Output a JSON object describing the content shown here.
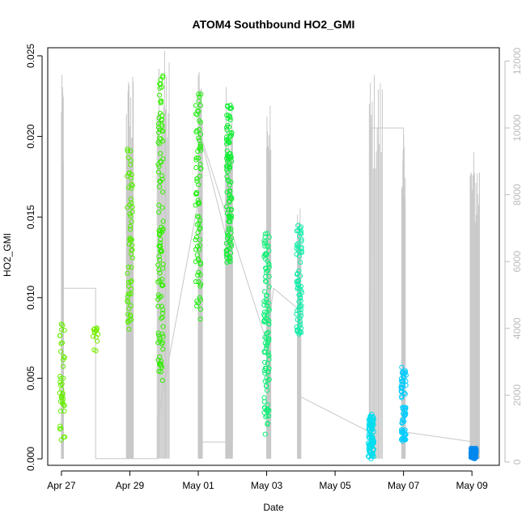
{
  "chart_data": {
    "type": "scatter",
    "title": "ATOM4 Southbound HO2_GMI",
    "xlabel": "Date",
    "ylabel": "HO2_GMI",
    "x_ticks": [
      "Apr 27",
      "Apr 29",
      "May 01",
      "May 03",
      "May 05",
      "May 07",
      "May 09"
    ],
    "y_ticks": [
      "0.000",
      "0.005",
      "0.010",
      "0.015",
      "0.020",
      "0.025"
    ],
    "y_right_ticks": [
      "0",
      "2000",
      "4000",
      "6000",
      "8000",
      "10000",
      "12000"
    ],
    "x_range_days": [
      -0.4,
      12.8
    ],
    "x_tick_days": [
      0,
      2,
      4,
      6,
      8,
      10,
      12
    ],
    "ylim": [
      -0.0004,
      0.0255
    ],
    "y2lim": [
      -100,
      12400
    ],
    "y_tick_values": [
      0,
      0.005,
      0.01,
      0.015,
      0.02,
      0.025
    ],
    "y2_tick_values": [
      0,
      2000,
      4000,
      6000,
      8000,
      10000,
      12000
    ],
    "marker": "open circle",
    "color_gradient": "green to blue by time",
    "grid": false,
    "point_clusters": [
      {
        "day": 0.02,
        "ymin": 0.0008,
        "ymax": 0.0088,
        "n": 40,
        "color": "#66ee00"
      },
      {
        "day": 1.0,
        "ymin": 0.0065,
        "ymax": 0.0082,
        "n": 14,
        "color": "#77ee00"
      },
      {
        "day": 2.0,
        "ymin": 0.0075,
        "ymax": 0.0198,
        "n": 60,
        "color": "#55ee00"
      },
      {
        "day": 2.9,
        "ymin": 0.0045,
        "ymax": 0.0245,
        "n": 110,
        "color": "#33ee00"
      },
      {
        "day": 4.0,
        "ymin": 0.0085,
        "ymax": 0.0237,
        "n": 80,
        "color": "#22ee11"
      },
      {
        "day": 4.9,
        "ymin": 0.0118,
        "ymax": 0.0226,
        "n": 110,
        "color": "#11ee33"
      },
      {
        "day": 6.0,
        "ymin": 0.0015,
        "ymax": 0.015,
        "n": 110,
        "color": "#11ee77"
      },
      {
        "day": 6.95,
        "ymin": 0.0075,
        "ymax": 0.0148,
        "n": 70,
        "color": "#11eeaa"
      },
      {
        "day": 9.05,
        "ymin": 0.0,
        "ymax": 0.003,
        "n": 100,
        "color": "#00ddee"
      },
      {
        "day": 10.0,
        "ymin": 0.001,
        "ymax": 0.0057,
        "n": 70,
        "color": "#00ccff"
      },
      {
        "day": 12.05,
        "ymin": 0.0,
        "ymax": 0.0007,
        "n": 90,
        "color": "#0088ee"
      }
    ],
    "altitude_flights": [
      {
        "start": 0.0,
        "end": 0.06,
        "peak": 11600
      },
      {
        "start": 1.9,
        "end": 2.1,
        "peak": 11800
      },
      {
        "start": 2.8,
        "end": 3.15,
        "peak": 12400
      },
      {
        "start": 4.0,
        "end": 4.12,
        "peak": 12200
      },
      {
        "start": 4.8,
        "end": 5.0,
        "peak": 11400
      },
      {
        "start": 6.0,
        "end": 6.12,
        "peak": 10800
      },
      {
        "start": 6.9,
        "end": 7.0,
        "peak": 7600
      },
      {
        "start": 9.0,
        "end": 9.38,
        "peak": 11800
      },
      {
        "start": 9.95,
        "end": 10.05,
        "peak": 9800
      },
      {
        "start": 11.95,
        "end": 12.22,
        "peak": 9500
      }
    ],
    "altitude_track_line": [
      [
        0.0,
        100
      ],
      [
        0.0,
        5200
      ],
      [
        1.0,
        5200
      ],
      [
        1.0,
        100
      ],
      [
        2.0,
        100
      ],
      [
        2.8,
        100
      ],
      [
        2.8,
        1200
      ],
      [
        4.0,
        7800
      ],
      [
        4.0,
        600
      ],
      [
        5.0,
        600
      ],
      [
        5.0,
        6000
      ],
      [
        4.0,
        10000
      ],
      [
        6.0,
        3600
      ],
      [
        6.2,
        5200
      ],
      [
        6.9,
        4600
      ],
      [
        6.9,
        2000
      ],
      [
        9.0,
        900
      ],
      [
        9.05,
        10000
      ],
      [
        10.0,
        10000
      ],
      [
        10.0,
        900
      ],
      [
        12.05,
        600
      ]
    ]
  }
}
